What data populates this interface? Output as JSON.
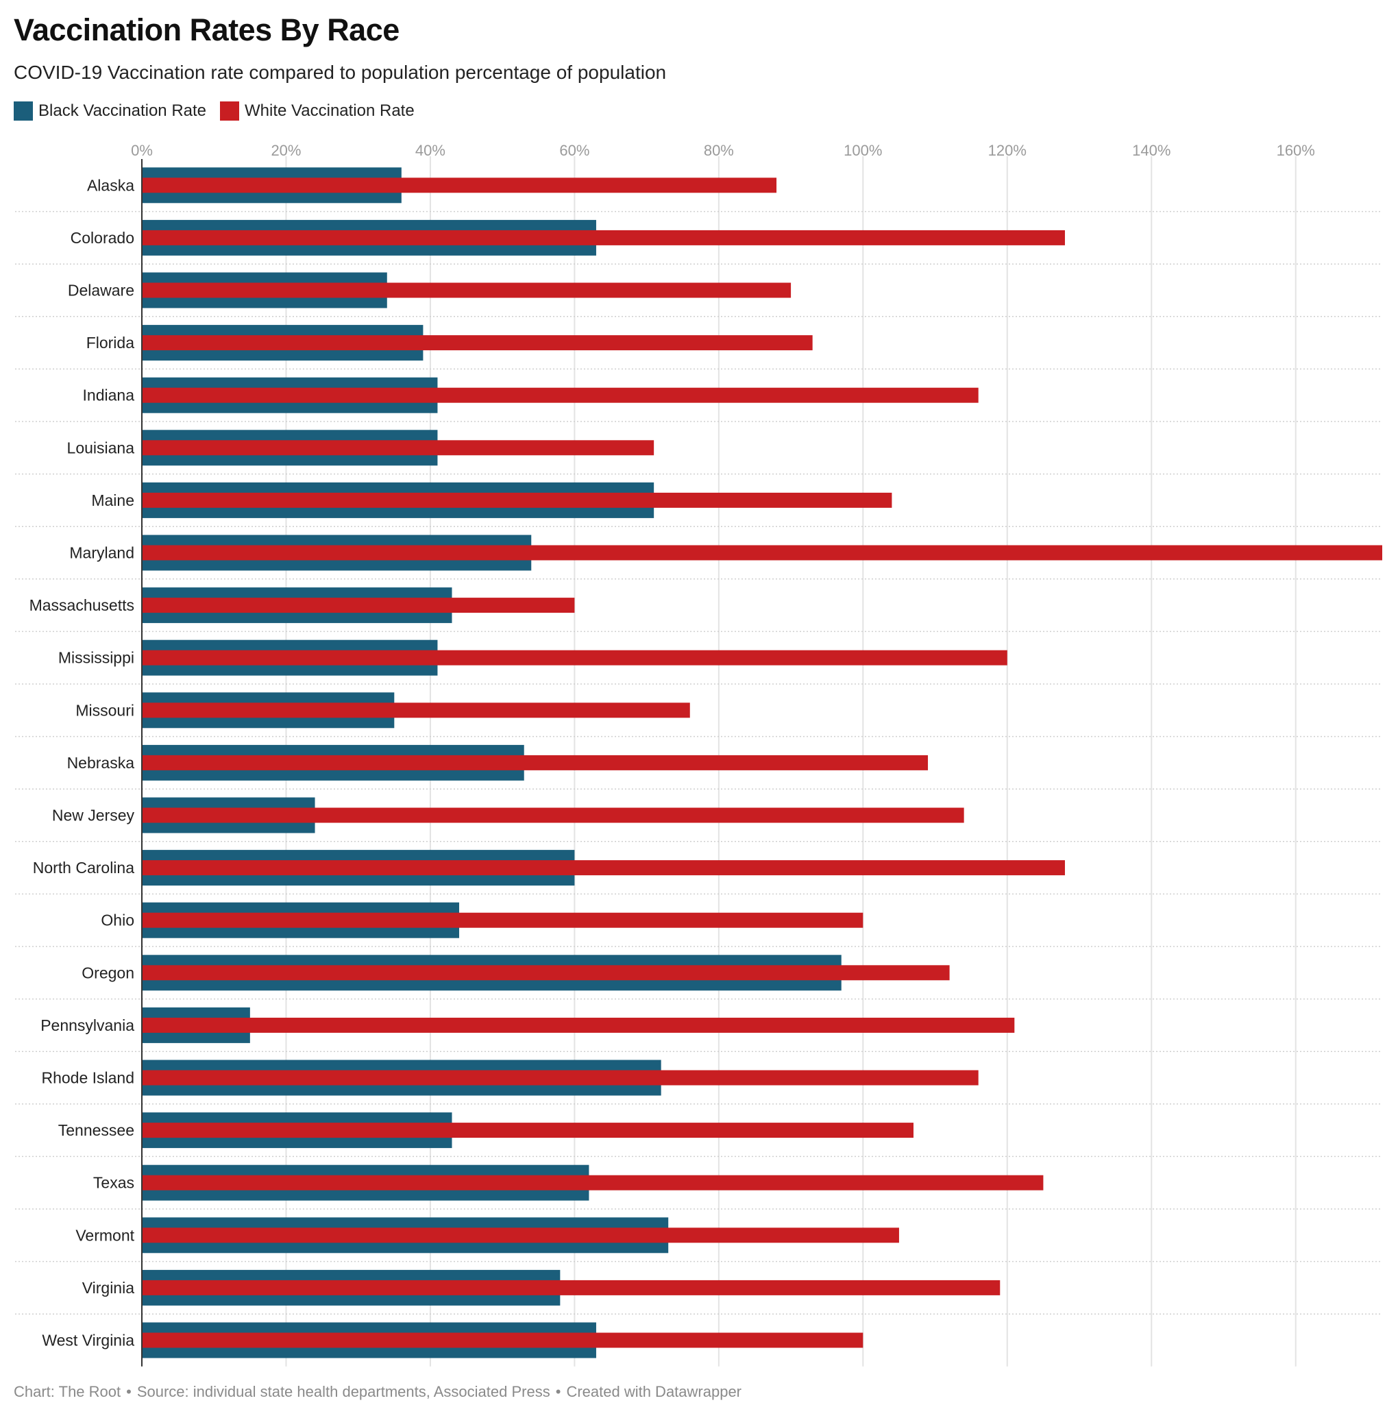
{
  "title": "Vaccination Rates By Race",
  "subtitle": "COVID-19 Vaccination rate compared to population percentage of population",
  "footer": {
    "chart_credit": "Chart: The Root",
    "source": "Source: individual state health departments, Associated Press",
    "tool": "Created with Datawrapper",
    "separator": "•"
  },
  "colors": {
    "black_rate": "#1b5e7b",
    "white_rate": "#c81e22",
    "grid": "#e3e3e3",
    "row_divider": "#cfcfcf",
    "axis": "#333333",
    "tick_text": "#9a9a9a",
    "category_text": "#222222"
  },
  "chart_data": {
    "type": "bar",
    "orientation": "horizontal",
    "title": "Vaccination Rates By Race",
    "subtitle": "COVID-19 Vaccination rate compared to population percentage of population",
    "legend_position": "top-left",
    "grid": true,
    "xlim": [
      0,
      172
    ],
    "x_ticks": [
      0,
      20,
      40,
      60,
      80,
      100,
      120,
      140,
      160
    ],
    "x_tick_labels": [
      "0%",
      "20%",
      "40%",
      "60%",
      "80%",
      "100%",
      "120%",
      "140%",
      "160%"
    ],
    "categories": [
      "Alaska",
      "Colorado",
      "Delaware",
      "Florida",
      "Indiana",
      "Louisiana",
      "Maine",
      "Maryland",
      "Massachusetts",
      "Mississippi",
      "Missouri",
      "Nebraska",
      "New Jersey",
      "North Carolina",
      "Ohio",
      "Oregon",
      "Pennsylvania",
      "Rhode Island",
      "Tennessee",
      "Texas",
      "Vermont",
      "Virginia",
      "West Virginia"
    ],
    "series": [
      {
        "name": "Black Vaccination Rate",
        "color": "#1b5e7b",
        "values": [
          36,
          63,
          34,
          39,
          41,
          41,
          71,
          54,
          43,
          41,
          35,
          53,
          24,
          60,
          44,
          97,
          15,
          72,
          43,
          62,
          73,
          58,
          63
        ]
      },
      {
        "name": "White Vaccination Rate",
        "color": "#c81e22",
        "values": [
          88,
          128,
          90,
          93,
          116,
          71,
          104,
          172,
          60,
          120,
          76,
          109,
          114,
          128,
          100,
          112,
          121,
          116,
          107,
          125,
          105,
          119,
          100
        ]
      }
    ]
  }
}
